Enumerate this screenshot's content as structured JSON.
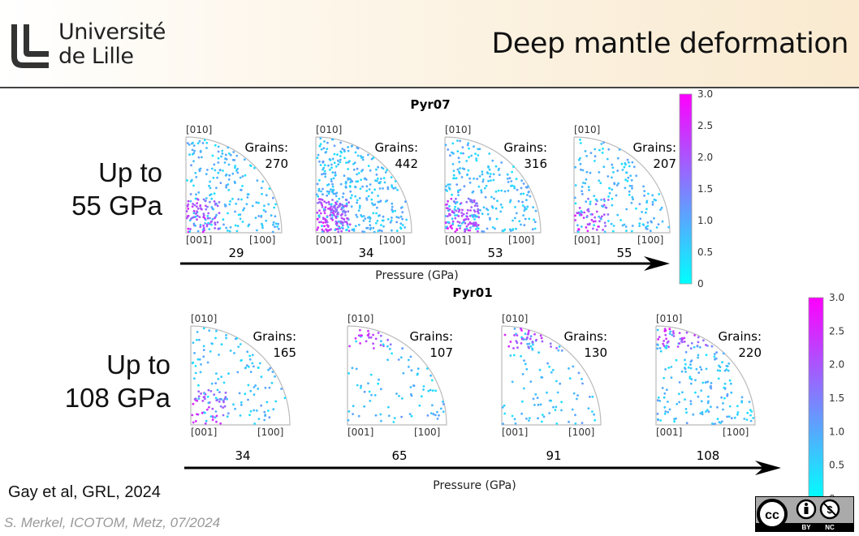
{
  "header": {
    "logo_line1": "Université",
    "logo_line2": "de Lille",
    "title": "Deep mantle deformation"
  },
  "rows": [
    {
      "label_line1": "Up to",
      "label_line2": "55 GPa",
      "sample": "Pyr07",
      "axis_label": "Pressure (GPa)",
      "plots": [
        {
          "grains_label": "Grains:",
          "grains": "270",
          "pressure": "29",
          "texture_max": "[001]"
        },
        {
          "grains_label": "Grains:",
          "grains": "442",
          "pressure": "34",
          "texture_max": "[001]"
        },
        {
          "grains_label": "Grains:",
          "grains": "316",
          "pressure": "53",
          "texture_max": "[001]"
        },
        {
          "grains_label": "Grains:",
          "grains": "207",
          "pressure": "55",
          "texture_max": "[001]"
        }
      ],
      "colorbar": {
        "ticks": [
          "3.0",
          "2.5",
          "2.0",
          "1.5",
          "1.0",
          "0.5",
          "0"
        ],
        "min": 0,
        "max": 3
      }
    },
    {
      "label_line1": "Up to",
      "label_line2": "108 GPa",
      "sample": "Pyr01",
      "axis_label": "Pressure (GPa)",
      "plots": [
        {
          "grains_label": "Grains:",
          "grains": "165",
          "pressure": "34",
          "texture_max": "[001]"
        },
        {
          "grains_label": "Grains:",
          "grains": "107",
          "pressure": "65",
          "texture_max": "[010]"
        },
        {
          "grains_label": "Grains:",
          "grains": "130",
          "pressure": "91",
          "texture_max": "[010]"
        },
        {
          "grains_label": "Grains:",
          "grains": "220",
          "pressure": "108",
          "texture_max": "[010]"
        }
      ],
      "colorbar": {
        "ticks": [
          "3.0",
          "2.5",
          "2.0",
          "1.5",
          "1.0",
          "0.5",
          "0"
        ],
        "min": 0,
        "max": 3
      }
    }
  ],
  "pole_labels": {
    "top": "[010]",
    "origin": "[001]",
    "right": "[100]"
  },
  "colors": {
    "low": "#00ffff",
    "high": "#ff00ff"
  },
  "footer": {
    "reference": "Gay et al, GRL, 2024",
    "credit": "S. Merkel, ICOTOM, Metz, 07/2024",
    "license_by": "BY",
    "license_nc": "NC",
    "license_cc": "cc"
  }
}
